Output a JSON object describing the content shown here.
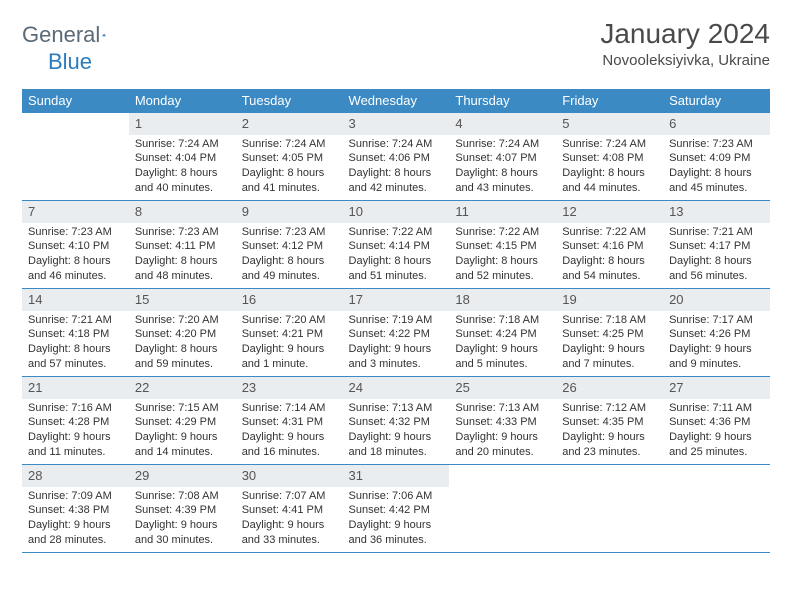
{
  "colors": {
    "header_bg": "#3b8ac4",
    "header_text": "#ffffff",
    "daynum_bg": "#e9edf0",
    "rule": "#3b8ac4",
    "body_text": "#333333",
    "title_text": "#4a4a4a",
    "logo_gray": "#5a6a78",
    "logo_blue": "#2a7bc0",
    "page_bg": "#ffffff"
  },
  "logo": {
    "word1": "General",
    "word2": "Blue"
  },
  "title": "January 2024",
  "location": "Novooleksiyivka, Ukraine",
  "day_headers": [
    "Sunday",
    "Monday",
    "Tuesday",
    "Wednesday",
    "Thursday",
    "Friday",
    "Saturday"
  ],
  "weeks": [
    [
      null,
      {
        "n": "1",
        "sr": "7:24 AM",
        "ss": "4:04 PM",
        "dl": "8 hours and 40 minutes."
      },
      {
        "n": "2",
        "sr": "7:24 AM",
        "ss": "4:05 PM",
        "dl": "8 hours and 41 minutes."
      },
      {
        "n": "3",
        "sr": "7:24 AM",
        "ss": "4:06 PM",
        "dl": "8 hours and 42 minutes."
      },
      {
        "n": "4",
        "sr": "7:24 AM",
        "ss": "4:07 PM",
        "dl": "8 hours and 43 minutes."
      },
      {
        "n": "5",
        "sr": "7:24 AM",
        "ss": "4:08 PM",
        "dl": "8 hours and 44 minutes."
      },
      {
        "n": "6",
        "sr": "7:23 AM",
        "ss": "4:09 PM",
        "dl": "8 hours and 45 minutes."
      }
    ],
    [
      {
        "n": "7",
        "sr": "7:23 AM",
        "ss": "4:10 PM",
        "dl": "8 hours and 46 minutes."
      },
      {
        "n": "8",
        "sr": "7:23 AM",
        "ss": "4:11 PM",
        "dl": "8 hours and 48 minutes."
      },
      {
        "n": "9",
        "sr": "7:23 AM",
        "ss": "4:12 PM",
        "dl": "8 hours and 49 minutes."
      },
      {
        "n": "10",
        "sr": "7:22 AM",
        "ss": "4:14 PM",
        "dl": "8 hours and 51 minutes."
      },
      {
        "n": "11",
        "sr": "7:22 AM",
        "ss": "4:15 PM",
        "dl": "8 hours and 52 minutes."
      },
      {
        "n": "12",
        "sr": "7:22 AM",
        "ss": "4:16 PM",
        "dl": "8 hours and 54 minutes."
      },
      {
        "n": "13",
        "sr": "7:21 AM",
        "ss": "4:17 PM",
        "dl": "8 hours and 56 minutes."
      }
    ],
    [
      {
        "n": "14",
        "sr": "7:21 AM",
        "ss": "4:18 PM",
        "dl": "8 hours and 57 minutes."
      },
      {
        "n": "15",
        "sr": "7:20 AM",
        "ss": "4:20 PM",
        "dl": "8 hours and 59 minutes."
      },
      {
        "n": "16",
        "sr": "7:20 AM",
        "ss": "4:21 PM",
        "dl": "9 hours and 1 minute."
      },
      {
        "n": "17",
        "sr": "7:19 AM",
        "ss": "4:22 PM",
        "dl": "9 hours and 3 minutes."
      },
      {
        "n": "18",
        "sr": "7:18 AM",
        "ss": "4:24 PM",
        "dl": "9 hours and 5 minutes."
      },
      {
        "n": "19",
        "sr": "7:18 AM",
        "ss": "4:25 PM",
        "dl": "9 hours and 7 minutes."
      },
      {
        "n": "20",
        "sr": "7:17 AM",
        "ss": "4:26 PM",
        "dl": "9 hours and 9 minutes."
      }
    ],
    [
      {
        "n": "21",
        "sr": "7:16 AM",
        "ss": "4:28 PM",
        "dl": "9 hours and 11 minutes."
      },
      {
        "n": "22",
        "sr": "7:15 AM",
        "ss": "4:29 PM",
        "dl": "9 hours and 14 minutes."
      },
      {
        "n": "23",
        "sr": "7:14 AM",
        "ss": "4:31 PM",
        "dl": "9 hours and 16 minutes."
      },
      {
        "n": "24",
        "sr": "7:13 AM",
        "ss": "4:32 PM",
        "dl": "9 hours and 18 minutes."
      },
      {
        "n": "25",
        "sr": "7:13 AM",
        "ss": "4:33 PM",
        "dl": "9 hours and 20 minutes."
      },
      {
        "n": "26",
        "sr": "7:12 AM",
        "ss": "4:35 PM",
        "dl": "9 hours and 23 minutes."
      },
      {
        "n": "27",
        "sr": "7:11 AM",
        "ss": "4:36 PM",
        "dl": "9 hours and 25 minutes."
      }
    ],
    [
      {
        "n": "28",
        "sr": "7:09 AM",
        "ss": "4:38 PM",
        "dl": "9 hours and 28 minutes."
      },
      {
        "n": "29",
        "sr": "7:08 AM",
        "ss": "4:39 PM",
        "dl": "9 hours and 30 minutes."
      },
      {
        "n": "30",
        "sr": "7:07 AM",
        "ss": "4:41 PM",
        "dl": "9 hours and 33 minutes."
      },
      {
        "n": "31",
        "sr": "7:06 AM",
        "ss": "4:42 PM",
        "dl": "9 hours and 36 minutes."
      },
      null,
      null,
      null
    ]
  ],
  "labels": {
    "sunrise": "Sunrise:",
    "sunset": "Sunset:",
    "daylight": "Daylight:"
  }
}
